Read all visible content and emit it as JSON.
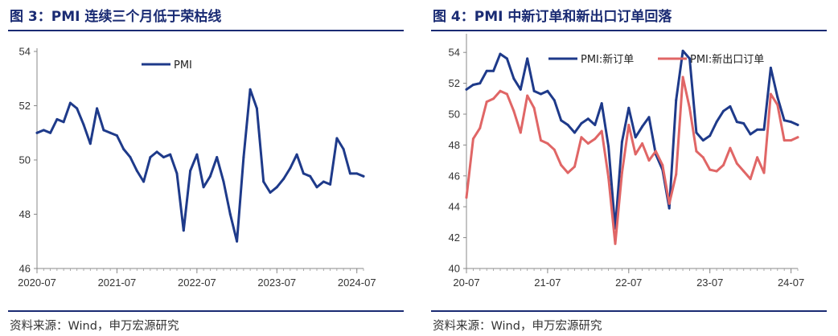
{
  "left": {
    "title": "图 3：PMI 连续三个月低于荣枯线",
    "source": "资料来源：Wind，申万宏源研究",
    "chart_data": {
      "type": "line",
      "ylim": [
        46,
        54
      ],
      "yticks": [
        "46",
        "48",
        "50",
        "52",
        "54"
      ],
      "xticks": [
        {
          "label": "2020-07",
          "index": 0
        },
        {
          "label": "2021-07",
          "index": 12
        },
        {
          "label": "2022-07",
          "index": 24
        },
        {
          "label": "2023-07",
          "index": 36
        },
        {
          "label": "2024-07",
          "index": 48
        }
      ],
      "legend_position": "top-left",
      "series": [
        {
          "name": "PMI",
          "color": "#1e3a8a",
          "values": [
            51.0,
            51.1,
            51.0,
            51.5,
            51.4,
            52.1,
            51.9,
            51.3,
            50.6,
            51.9,
            51.1,
            51.0,
            50.9,
            50.4,
            50.1,
            49.6,
            49.2,
            50.1,
            50.3,
            50.1,
            50.2,
            49.5,
            47.4,
            49.6,
            50.2,
            49.0,
            49.4,
            50.1,
            49.2,
            48.0,
            47.0,
            50.1,
            52.6,
            51.9,
            49.2,
            48.8,
            49.0,
            49.3,
            49.7,
            50.2,
            49.5,
            49.4,
            49.0,
            49.2,
            49.1,
            50.8,
            50.4,
            49.5,
            49.5,
            49.4
          ]
        }
      ]
    }
  },
  "right": {
    "title": "图 4：PMI 中新订单和新出口订单回落",
    "source": "资料来源：Wind，申万宏源研究",
    "chart_data": {
      "type": "line",
      "ylim": [
        40,
        55
      ],
      "yticks": [
        "40",
        "42",
        "44",
        "46",
        "48",
        "50",
        "52",
        "54"
      ],
      "xticks": [
        {
          "label": "20-07",
          "index": 0
        },
        {
          "label": "21-07",
          "index": 12
        },
        {
          "label": "22-07",
          "index": 24
        },
        {
          "label": "23-07",
          "index": 36
        },
        {
          "label": "24-07",
          "index": 48
        }
      ],
      "legend_position": "top",
      "series": [
        {
          "name": "PMI:新订单",
          "color": "#1e3a8a",
          "values": [
            51.6,
            51.9,
            52.0,
            52.8,
            52.8,
            53.9,
            53.6,
            52.3,
            51.6,
            53.6,
            51.5,
            51.3,
            51.5,
            50.9,
            49.6,
            49.3,
            48.8,
            49.4,
            49.7,
            49.3,
            50.7,
            47.9,
            42.6,
            48.2,
            50.4,
            48.5,
            49.2,
            49.8,
            47.4,
            46.4,
            43.9,
            50.9,
            54.1,
            53.6,
            48.8,
            48.3,
            48.6,
            49.5,
            50.2,
            50.5,
            49.5,
            49.4,
            48.7,
            49.0,
            49.0,
            53.0,
            51.1,
            49.6,
            49.5,
            49.3
          ]
        },
        {
          "name": "PMI:新出口订单",
          "color": "#e06666",
          "values": [
            44.6,
            48.4,
            49.1,
            50.8,
            51.0,
            51.5,
            51.3,
            50.2,
            48.8,
            51.2,
            50.4,
            48.3,
            48.1,
            47.7,
            46.7,
            46.2,
            46.6,
            48.5,
            48.1,
            48.4,
            48.9,
            45.9,
            41.6,
            46.2,
            49.3,
            47.4,
            48.1,
            47.0,
            47.6,
            46.7,
            44.2,
            46.1,
            52.4,
            50.4,
            47.6,
            47.2,
            46.4,
            46.3,
            46.7,
            47.8,
            46.8,
            46.3,
            45.8,
            47.2,
            46.2,
            51.3,
            50.6,
            48.3,
            48.3,
            48.5
          ]
        }
      ]
    }
  }
}
